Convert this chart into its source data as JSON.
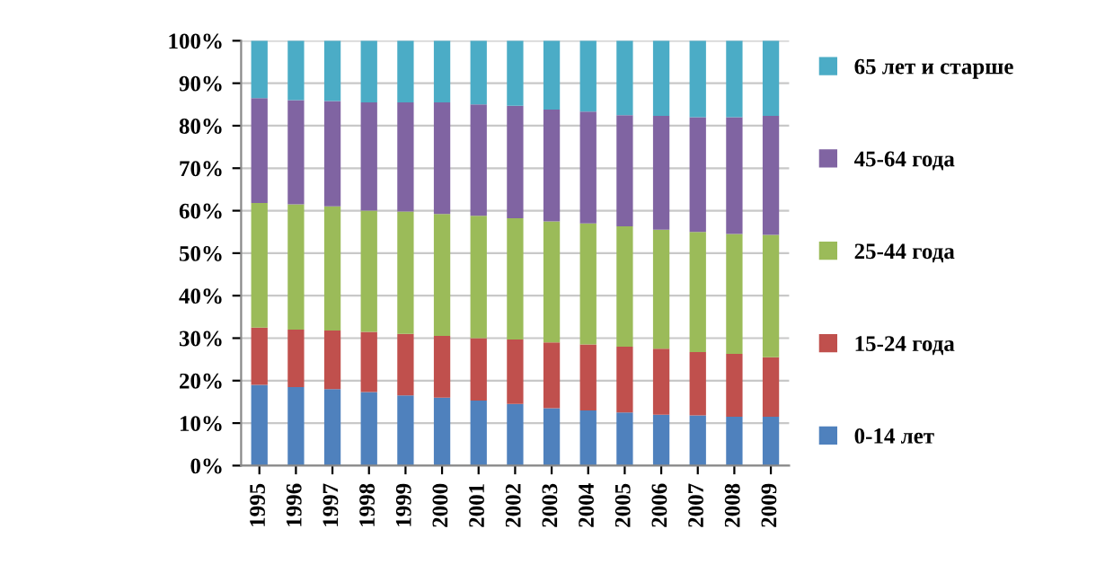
{
  "chart_data": {
    "type": "bar",
    "stacked": true,
    "categories": [
      "1995",
      "1996",
      "1997",
      "1998",
      "1999",
      "2000",
      "2001",
      "2002",
      "2003",
      "2004",
      "2005",
      "2006",
      "2007",
      "2008",
      "2009"
    ],
    "series": [
      {
        "name": "0-14 лет",
        "color": "#4f81bd",
        "values": [
          19,
          18.5,
          18,
          17.3,
          16.5,
          16,
          15.3,
          14.5,
          13.5,
          13,
          12.5,
          12,
          11.8,
          11.5,
          11.5
        ]
      },
      {
        "name": "15-24 года",
        "color": "#c0504d",
        "values": [
          13.5,
          13.5,
          13.8,
          14.2,
          14.5,
          14.5,
          14.7,
          15.2,
          15.5,
          15.5,
          15.5,
          15.5,
          14.9,
          14.8,
          14.0
        ]
      },
      {
        "name": "25-44 года",
        "color": "#9bbb59",
        "values": [
          29.3,
          29.5,
          29.2,
          28.5,
          28.8,
          28.7,
          28.8,
          28.5,
          28.5,
          28.5,
          28.3,
          28.0,
          28.3,
          28.2,
          28.8
        ]
      },
      {
        "name": "45-64 года",
        "color": "#8064a2",
        "values": [
          24.7,
          24.5,
          24.8,
          25.5,
          25.7,
          26.3,
          26.2,
          26.5,
          26.3,
          26.3,
          26.2,
          26.8,
          27.0,
          27.5,
          28.0
        ]
      },
      {
        "name": "65 лет и старше",
        "color": "#4bacc6",
        "values": [
          13.5,
          14,
          14.2,
          14.5,
          14.5,
          14.5,
          15,
          15.3,
          16.2,
          16.7,
          17.5,
          17.7,
          18,
          18,
          17.7
        ]
      }
    ],
    "ylim": [
      0,
      100
    ],
    "yticks": [
      {
        "value": 0,
        "label": "0%"
      },
      {
        "value": 10,
        "label": "10%"
      },
      {
        "value": 20,
        "label": "20%"
      },
      {
        "value": 30,
        "label": "30%"
      },
      {
        "value": 40,
        "label": "40%"
      },
      {
        "value": 50,
        "label": "50%"
      },
      {
        "value": 60,
        "label": "60%"
      },
      {
        "value": 70,
        "label": "70%"
      },
      {
        "value": 80,
        "label": "80%"
      },
      {
        "value": 90,
        "label": "90%"
      },
      {
        "value": 100,
        "label": "100%"
      }
    ],
    "grid": "y",
    "legend": "right"
  }
}
